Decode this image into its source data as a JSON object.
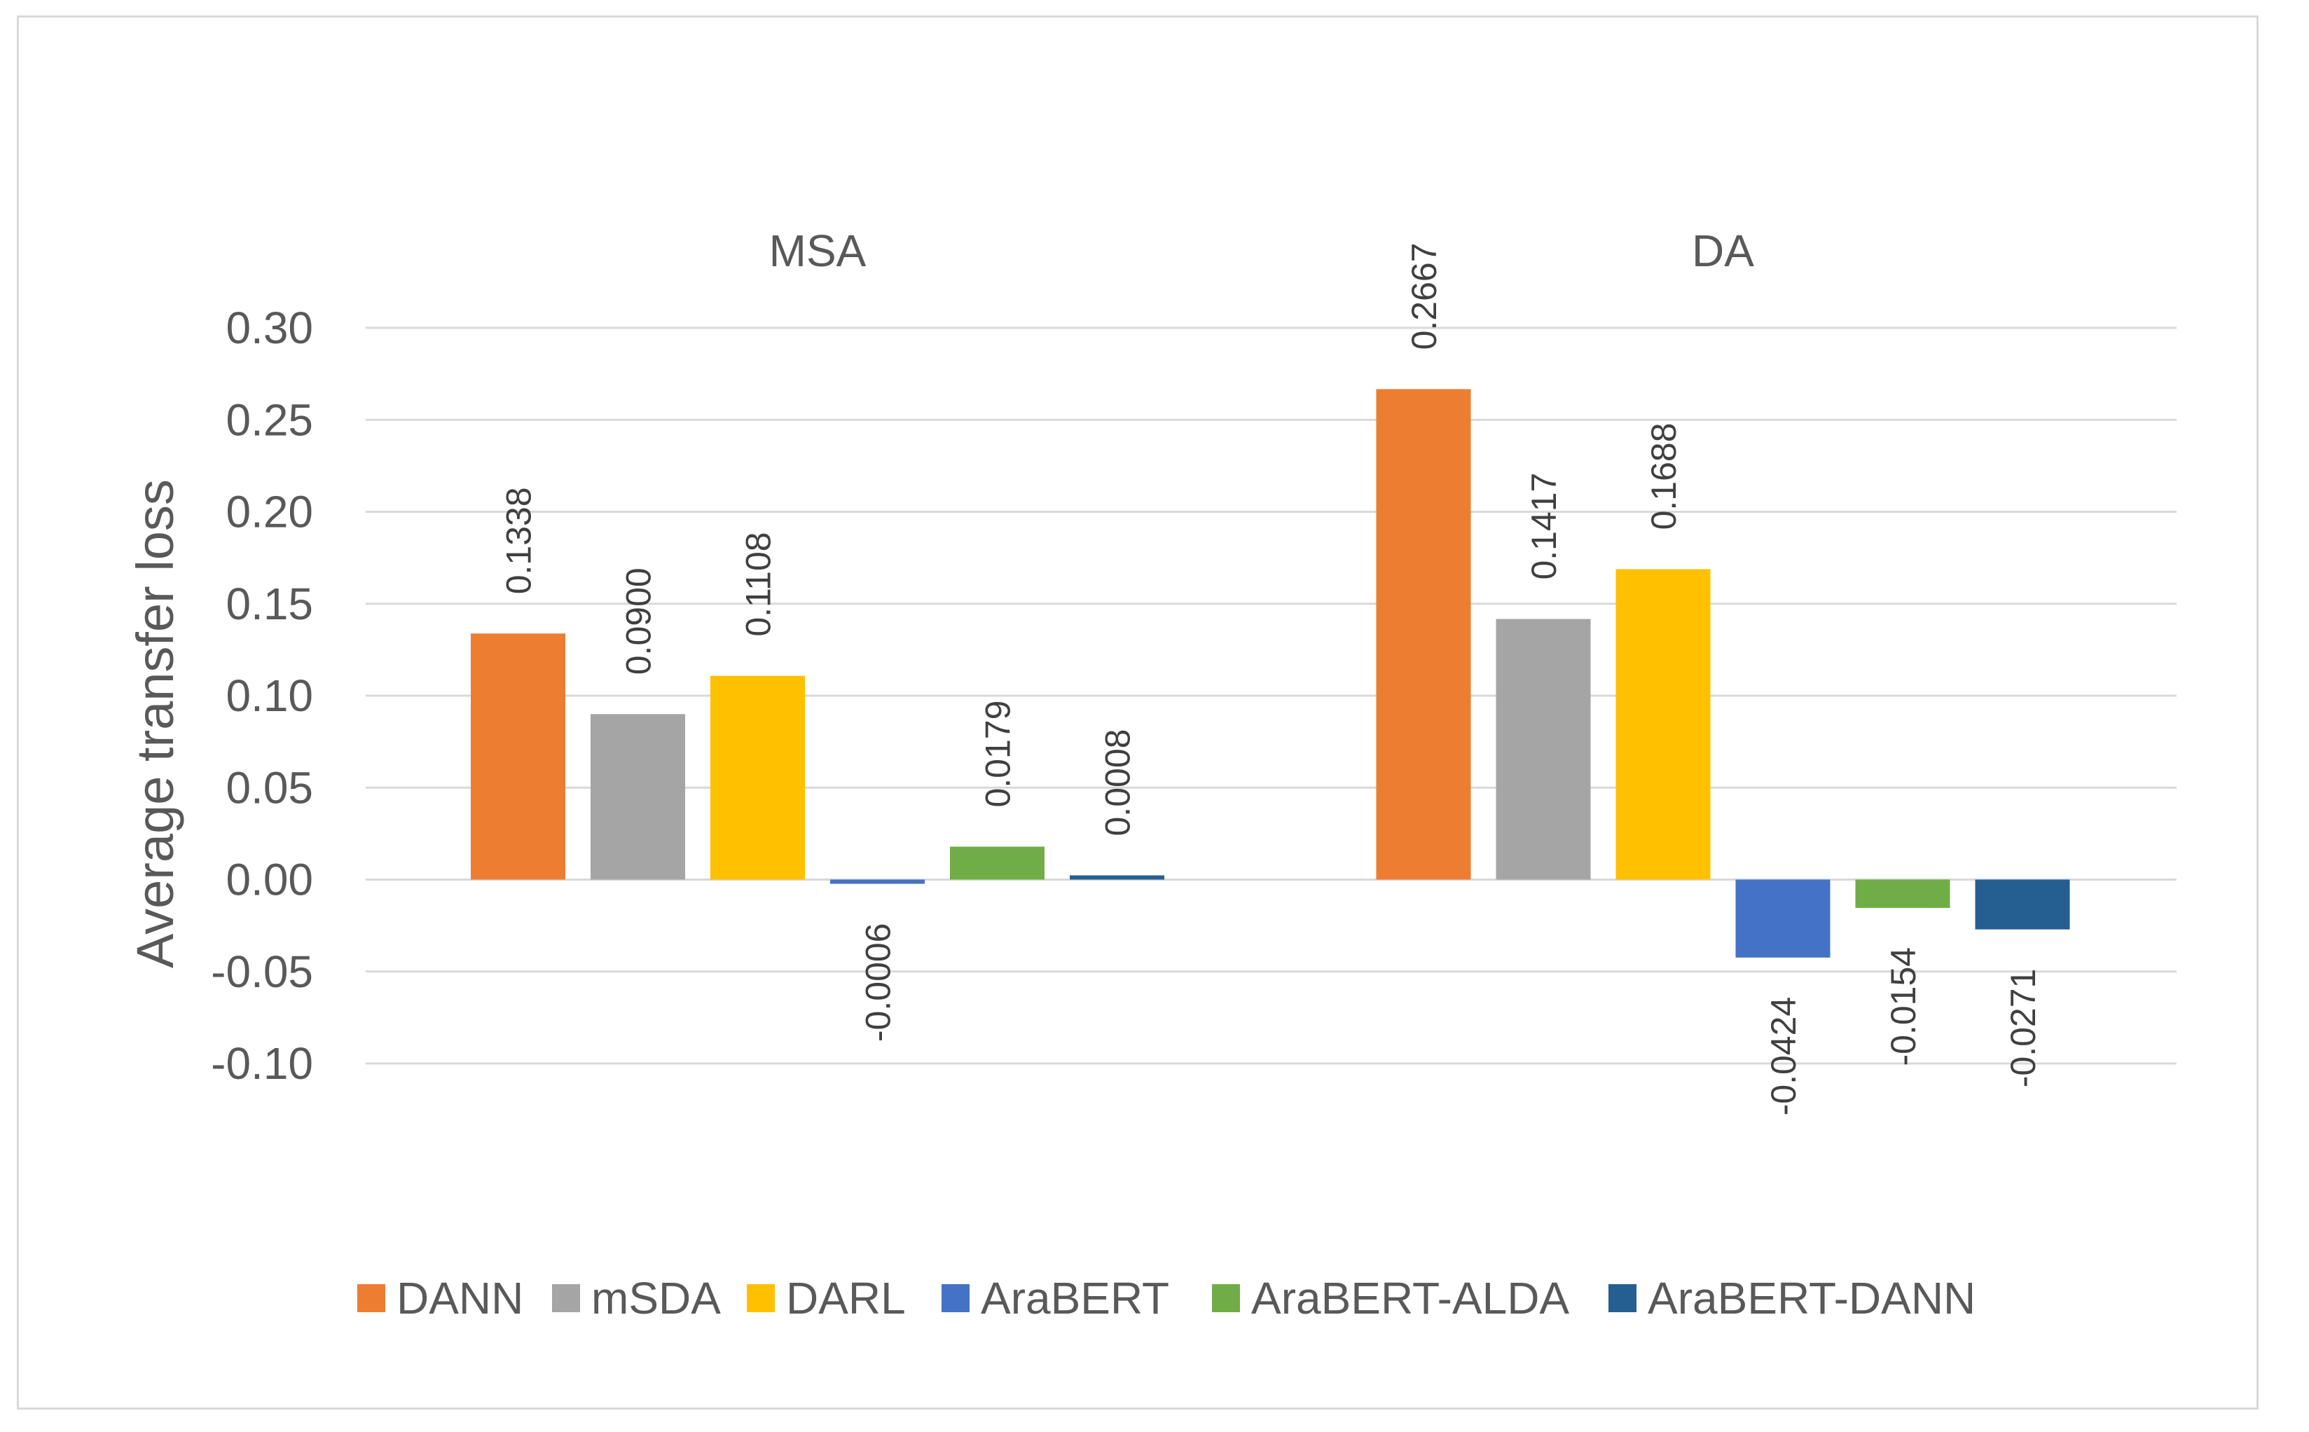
{
  "chart_data": {
    "type": "bar",
    "title": "",
    "xlabel": "",
    "ylabel": "Average transfer loss",
    "ylim": [
      -0.1,
      0.3
    ],
    "ytick_step": 0.05,
    "ytick_labels": [
      "-0.10",
      "-0.05",
      "0.00",
      "0.05",
      "0.10",
      "0.15",
      "0.20",
      "0.25",
      "0.30"
    ],
    "grid": true,
    "legend_position": "bottom",
    "categories": [
      "MSA",
      "DA"
    ],
    "series": [
      {
        "name": "DANN",
        "color": "#ED7D31",
        "values": [
          0.1338,
          0.2667
        ],
        "labels": [
          "0.1338",
          "0.2667"
        ]
      },
      {
        "name": "mSDA",
        "color": "#A5A5A5",
        "values": [
          0.09,
          0.1417
        ],
        "labels": [
          "0.0900",
          "0.1417"
        ]
      },
      {
        "name": "DARL",
        "color": "#FFC000",
        "values": [
          0.1108,
          0.1688
        ],
        "labels": [
          "0.1108",
          "0.1688"
        ]
      },
      {
        "name": "AraBERT",
        "color": "#4472C4",
        "values": [
          -0.0006,
          -0.0424
        ],
        "labels": [
          "-0.0006",
          "-0.0424"
        ]
      },
      {
        "name": "AraBERT-ALDA",
        "color": "#70AD47",
        "values": [
          0.0179,
          -0.0154
        ],
        "labels": [
          "0.0179",
          "-0.0154"
        ]
      },
      {
        "name": "AraBERT-DANN",
        "color": "#255E91",
        "values": [
          0.0008,
          -0.0271
        ],
        "labels": [
          "0.0008",
          "-0.0271"
        ]
      }
    ]
  }
}
